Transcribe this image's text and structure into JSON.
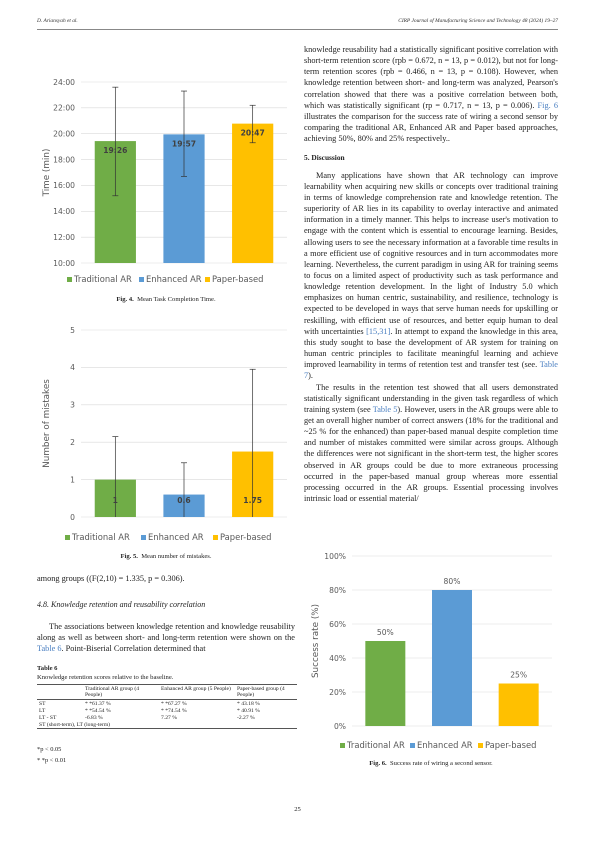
{
  "header": {
    "left": "D. Ariansyah et al.",
    "right": "CIRP Journal of Manufacturing Science and Technology 48 (2024) 19–27"
  },
  "chart_data": [
    {
      "type": "bar",
      "ylabel": "Time (min)",
      "ylim": [
        10,
        24
      ],
      "yticks": [
        "10:00",
        "12:00",
        "14:00",
        "16:00",
        "18:00",
        "20:00",
        "22:00",
        "24:00"
      ],
      "categories": [
        "Traditional AR",
        "Enhanced AR",
        "Paper-based"
      ],
      "values": [
        19.43,
        19.95,
        20.78
      ],
      "labels": [
        "19:26",
        "19:57",
        "20:47"
      ],
      "err_low": [
        15.2,
        16.7,
        19.3
      ],
      "err_high": [
        23.6,
        23.3,
        22.2
      ],
      "colors": [
        "#70ad47",
        "#5b9bd5",
        "#ffc000"
      ],
      "caption_prefix": "Fig. 4.",
      "caption": "Mean Task Completion Time."
    },
    {
      "type": "bar",
      "ylabel": "Number of mistakes",
      "ylim": [
        0,
        5
      ],
      "yticks": [
        "0",
        "1",
        "2",
        "3",
        "4",
        "5"
      ],
      "categories": [
        "Traditional AR",
        "Enhanced AR",
        "Paper-based"
      ],
      "values": [
        1,
        0.6,
        1.75
      ],
      "labels": [
        "1",
        "0.6",
        "1.75"
      ],
      "err_low": [
        0,
        0,
        0
      ],
      "err_high": [
        2.15,
        1.45,
        3.95
      ],
      "colors": [
        "#70ad47",
        "#5b9bd5",
        "#ffc000"
      ],
      "caption_prefix": "Fig. 5.",
      "caption": "Mean number of mistakes."
    },
    {
      "type": "bar",
      "ylabel": "Success rate (%)",
      "ylim": [
        0,
        100
      ],
      "yticks": [
        "0%",
        "20%",
        "40%",
        "60%",
        "80%",
        "100%"
      ],
      "categories": [
        "Traditional AR",
        "Enhanced AR",
        "Paper-based"
      ],
      "values": [
        50,
        80,
        25
      ],
      "labels": [
        "50%",
        "80%",
        "25%"
      ],
      "colors": [
        "#70ad47",
        "#5b9bd5",
        "#ffc000"
      ],
      "caption_prefix": "Fig. 6.",
      "caption": "Success rate of wiring a second sensor."
    }
  ],
  "right": {
    "p1a": "knowledge reusability had a statistically significant positive correlation with short-term retention score (rpb = 0.672, n = 13, p = 0.012), but not for long-term retention scores (rpb = 0.466, n = 13, p = 0.108). However, when knowledge retention between short- and long-term was analyzed, Pearson's correlation showed that there was a positive correlation between both, which was statistically significant (rp = 0.717, n = 13, p = 0.006). ",
    "p1link": "Fig. 6",
    "p1b": " illustrates the comparison for the success rate of wiring a second sensor by comparing the traditional AR, Enhanced AR and Paper based approaches, achieving 50%, 80% and 25% respectively..",
    "sec": "5. Discussion",
    "p2a": "Many applications have shown that AR technology can improve learnability when acquiring new skills or concepts over traditional training in terms of knowledge comprehension rate and knowledge retention. The superiority of AR lies in its capability to overlay interactive and animated information in a timely manner. This helps to increase user's motivation to engage with the content which is essential to encourage learning. Besides, allowing users to see the necessary information at a favorable time results in a more efficient use of cognitive resources and in turn accommodates more learning. Nevertheless, the current paradigm in using AR for training seems to focus on a limited aspect of productivity such as task performance and knowledge retention development. In the light of Industry 5.0 which emphasizes on human centric, sustainability, and resilience, technology is expected to be developed in ways that serve human needs for upskilling or reskilling, with efficient use of resources, and better equip human to deal with uncertainties ",
    "p2link1": "[15,31]",
    "p2b": ". In attempt to expand the knowledge in this area, this study sought to base the development of AR system for training on human centric principles to facilitate meaningful learning and achieve improved learnability in terms of retention test and transfer test (see. ",
    "p2link2": "Table 7",
    "p2c": ").",
    "p3a": "The results in the retention test showed that all users demonstrated statistically significant understanding in the given task regardless of which training system (see ",
    "p3link": "Table 5",
    "p3b": "). However, users in the AR groups were able to get an overall higher number of correct answers (18% for the traditional and ~25 % for the enhanced) than paper-based manual despite completion time and number of mistakes committed were similar across groups. Although the differences were not significant in the short-term test, the higher scores observed in AR groups could be due to more extraneous processing occurred in the paper-based manual group whereas more essential processing occurred in the AR groups. Essential processing involves intrinsic load or essential material/"
  },
  "left": {
    "among": "among groups ((F(2,10) = 1.335, p = 0.306).",
    "subsec": "4.8. Knowledge retention and reusability correlation",
    "p1a": "The associations between knowledge retention and knowledge reusability along as well as between short- and long-term retention were shown on the ",
    "p1link": "Table 6",
    "p1b": ". Point-Biserial Correlation determined that"
  },
  "table": {
    "title": "Table 6",
    "subtitle": "Knowledge retention scores relative to the baseline.",
    "headers": [
      "",
      "Traditional AR group (4 People)",
      "Enhanced AR group (5 People)",
      "Paper-based group (4 People)"
    ],
    "rows": [
      [
        "ST",
        "* *61.37 %",
        "* *67.27 %",
        "* 43.18 %"
      ],
      [
        "LT",
        "* *54.54 %",
        "* *74.54 %",
        "* 40.91 %"
      ],
      [
        "LT - ST",
        "-6.83 %",
        "7.27 %",
        "-2.27 %"
      ]
    ],
    "footnote": "ST (short-term), LT (long-term)",
    "note1": "*p < 0.05",
    "note2": "* *p < 0.01"
  },
  "page_number": "25"
}
